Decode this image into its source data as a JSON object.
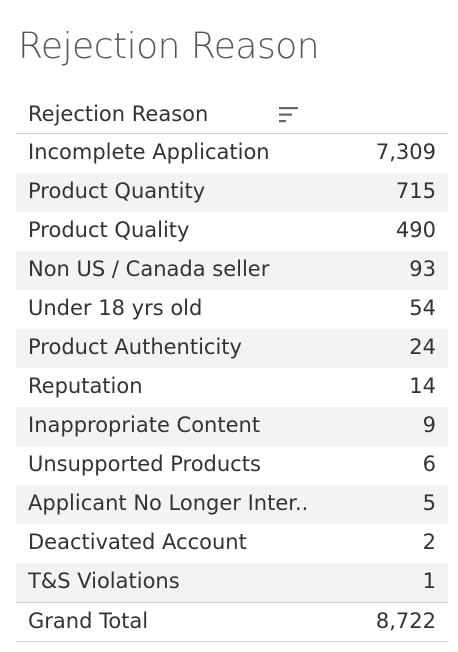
{
  "title": "Rejection Reason",
  "table": {
    "header": "Rejection Reason",
    "rows": [
      {
        "label": "Incomplete Application",
        "value": "7,309"
      },
      {
        "label": "Product Quantity",
        "value": "715"
      },
      {
        "label": "Product Quality",
        "value": "490"
      },
      {
        "label": "Non US / Canada seller",
        "value": "93"
      },
      {
        "label": "Under 18 yrs old",
        "value": "54"
      },
      {
        "label": "Product Authenticity",
        "value": "24"
      },
      {
        "label": "Reputation",
        "value": "14"
      },
      {
        "label": "Inappropriate Content",
        "value": "9"
      },
      {
        "label": "Unsupported Products",
        "value": "6"
      },
      {
        "label": "Applicant No Longer Inter..",
        "value": "5"
      },
      {
        "label": "Deactivated Account",
        "value": "2"
      },
      {
        "label": "T&S Violations",
        "value": "1"
      }
    ],
    "total": {
      "label": "Grand Total",
      "value": "8,722"
    }
  },
  "icons": {
    "sort": "sort-descending-icon"
  },
  "colors": {
    "row_shade": "#f3f3f3",
    "text": "#333333",
    "title": "#555555",
    "rule": "#cfcfcf"
  }
}
